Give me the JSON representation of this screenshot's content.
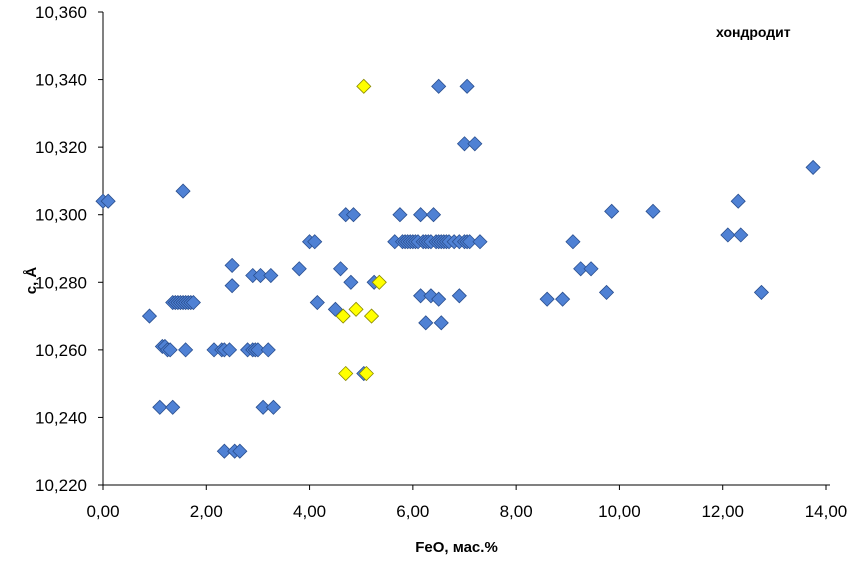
{
  "chart_data": {
    "type": "scatter",
    "xlabel": "FeO, мас.%",
    "ylabel": "c, Å",
    "annotation": "хондродит",
    "xlim": [
      0,
      14
    ],
    "ylim": [
      10.22,
      10.36
    ],
    "x_ticks": [
      "0,00",
      "2,00",
      "4,00",
      "6,00",
      "8,00",
      "10,00",
      "12,00",
      "14,00"
    ],
    "y_ticks": [
      "10,220",
      "10,240",
      "10,260",
      "10,280",
      "10,300",
      "10,320",
      "10,340",
      "10,360"
    ],
    "grid": false,
    "series": [
      {
        "color": "#4f81d4",
        "points": [
          [
            0.0,
            10.304
          ],
          [
            0.1,
            10.304
          ],
          [
            0.9,
            10.27
          ],
          [
            1.1,
            10.243
          ],
          [
            1.15,
            10.261
          ],
          [
            1.2,
            10.261
          ],
          [
            1.25,
            10.26
          ],
          [
            1.3,
            10.26
          ],
          [
            1.35,
            10.274
          ],
          [
            1.35,
            10.243
          ],
          [
            1.4,
            10.274
          ],
          [
            1.45,
            10.274
          ],
          [
            1.5,
            10.274
          ],
          [
            1.55,
            10.307
          ],
          [
            1.55,
            10.274
          ],
          [
            1.6,
            10.274
          ],
          [
            1.6,
            10.26
          ],
          [
            1.65,
            10.274
          ],
          [
            1.7,
            10.274
          ],
          [
            1.75,
            10.274
          ],
          [
            2.15,
            10.26
          ],
          [
            2.3,
            10.26
          ],
          [
            2.35,
            10.23
          ],
          [
            2.35,
            10.26
          ],
          [
            2.45,
            10.26
          ],
          [
            2.5,
            10.285
          ],
          [
            2.5,
            10.279
          ],
          [
            2.55,
            10.23
          ],
          [
            2.65,
            10.23
          ],
          [
            2.8,
            10.26
          ],
          [
            2.9,
            10.26
          ],
          [
            2.9,
            10.282
          ],
          [
            2.95,
            10.26
          ],
          [
            3.0,
            10.26
          ],
          [
            3.05,
            10.282
          ],
          [
            3.1,
            10.243
          ],
          [
            3.2,
            10.26
          ],
          [
            3.25,
            10.282
          ],
          [
            3.3,
            10.243
          ],
          [
            3.8,
            10.284
          ],
          [
            4.0,
            10.292
          ],
          [
            4.1,
            10.292
          ],
          [
            4.15,
            10.274
          ],
          [
            4.5,
            10.272
          ],
          [
            4.6,
            10.284
          ],
          [
            4.7,
            10.3
          ],
          [
            4.8,
            10.28
          ],
          [
            4.85,
            10.3
          ],
          [
            5.05,
            10.253
          ],
          [
            5.25,
            10.28
          ],
          [
            5.65,
            10.292
          ],
          [
            5.75,
            10.3
          ],
          [
            5.8,
            10.292
          ],
          [
            5.85,
            10.292
          ],
          [
            5.9,
            10.292
          ],
          [
            5.95,
            10.292
          ],
          [
            6.0,
            10.292
          ],
          [
            6.05,
            10.292
          ],
          [
            6.1,
            10.292
          ],
          [
            6.15,
            10.3
          ],
          [
            6.15,
            10.276
          ],
          [
            6.2,
            10.292
          ],
          [
            6.25,
            10.292
          ],
          [
            6.25,
            10.268
          ],
          [
            6.3,
            10.292
          ],
          [
            6.35,
            10.292
          ],
          [
            6.35,
            10.276
          ],
          [
            6.4,
            10.3
          ],
          [
            6.45,
            10.292
          ],
          [
            6.5,
            10.292
          ],
          [
            6.5,
            10.275
          ],
          [
            6.5,
            10.338
          ],
          [
            6.55,
            10.292
          ],
          [
            6.55,
            10.268
          ],
          [
            6.6,
            10.292
          ],
          [
            6.65,
            10.292
          ],
          [
            6.7,
            10.292
          ],
          [
            6.8,
            10.292
          ],
          [
            6.9,
            10.292
          ],
          [
            6.9,
            10.276
          ],
          [
            7.0,
            10.321
          ],
          [
            7.0,
            10.292
          ],
          [
            7.05,
            10.338
          ],
          [
            7.05,
            10.292
          ],
          [
            7.1,
            10.292
          ],
          [
            7.2,
            10.321
          ],
          [
            7.3,
            10.292
          ],
          [
            8.6,
            10.275
          ],
          [
            8.9,
            10.275
          ],
          [
            9.1,
            10.292
          ],
          [
            9.25,
            10.284
          ],
          [
            9.45,
            10.284
          ],
          [
            9.75,
            10.277
          ],
          [
            9.85,
            10.301
          ],
          [
            10.65,
            10.301
          ],
          [
            12.1,
            10.294
          ],
          [
            12.3,
            10.304
          ],
          [
            12.35,
            10.294
          ],
          [
            12.75,
            10.277
          ],
          [
            13.75,
            10.314
          ]
        ]
      },
      {
        "color": "#ffff00",
        "points": [
          [
            4.65,
            10.27
          ],
          [
            4.7,
            10.253
          ],
          [
            4.9,
            10.272
          ],
          [
            5.05,
            10.338
          ],
          [
            5.1,
            10.253
          ],
          [
            5.2,
            10.27
          ],
          [
            5.35,
            10.28
          ]
        ]
      }
    ]
  }
}
